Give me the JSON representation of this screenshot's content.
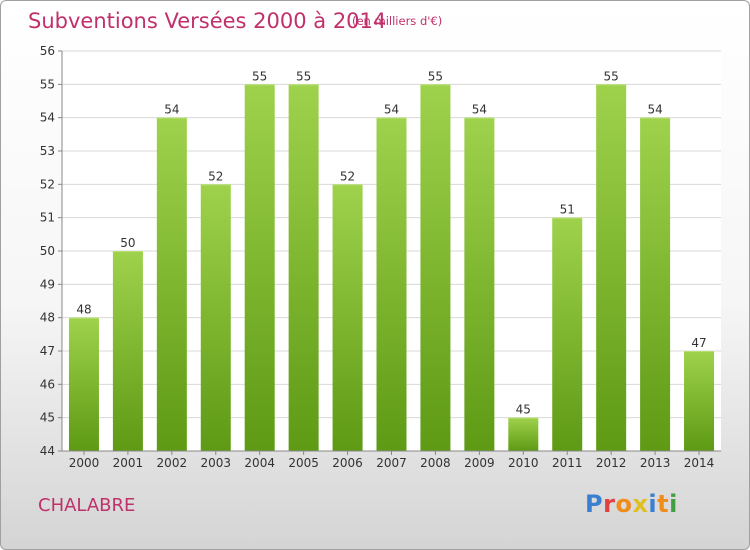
{
  "header": {
    "title": "Subventions Versées 2000 à 2014",
    "subtitle": "(en milliers d'€)"
  },
  "footer": {
    "city": "CHALABRE",
    "logo": "Proxiti"
  },
  "colors": {
    "accent": "#c0306a",
    "bar_top": "#9fd24c",
    "bar_bottom": "#5e9a14",
    "grid": "#d8d8d8",
    "logo_letters": [
      "#3a7fd0",
      "#e04040",
      "#f08c1a",
      "#e0c020",
      "#3a7fd0",
      "#f08c1a",
      "#40a040"
    ]
  },
  "chart_data": {
    "type": "bar",
    "title": "Subventions Versées 2000 à 2014",
    "subtitle": "(en milliers d'€)",
    "xlabel": "",
    "ylabel": "",
    "categories": [
      "2000",
      "2001",
      "2002",
      "2003",
      "2004",
      "2005",
      "2006",
      "2007",
      "2008",
      "2009",
      "2010",
      "2011",
      "2012",
      "2013",
      "2014"
    ],
    "values": [
      48,
      50,
      54,
      52,
      55,
      55,
      52,
      54,
      55,
      54,
      45,
      51,
      55,
      54,
      47
    ],
    "ylim": [
      44,
      56
    ],
    "yticks": [
      44,
      45,
      46,
      47,
      48,
      49,
      50,
      51,
      52,
      53,
      54,
      55,
      56
    ],
    "grid": true,
    "legend": "none"
  }
}
